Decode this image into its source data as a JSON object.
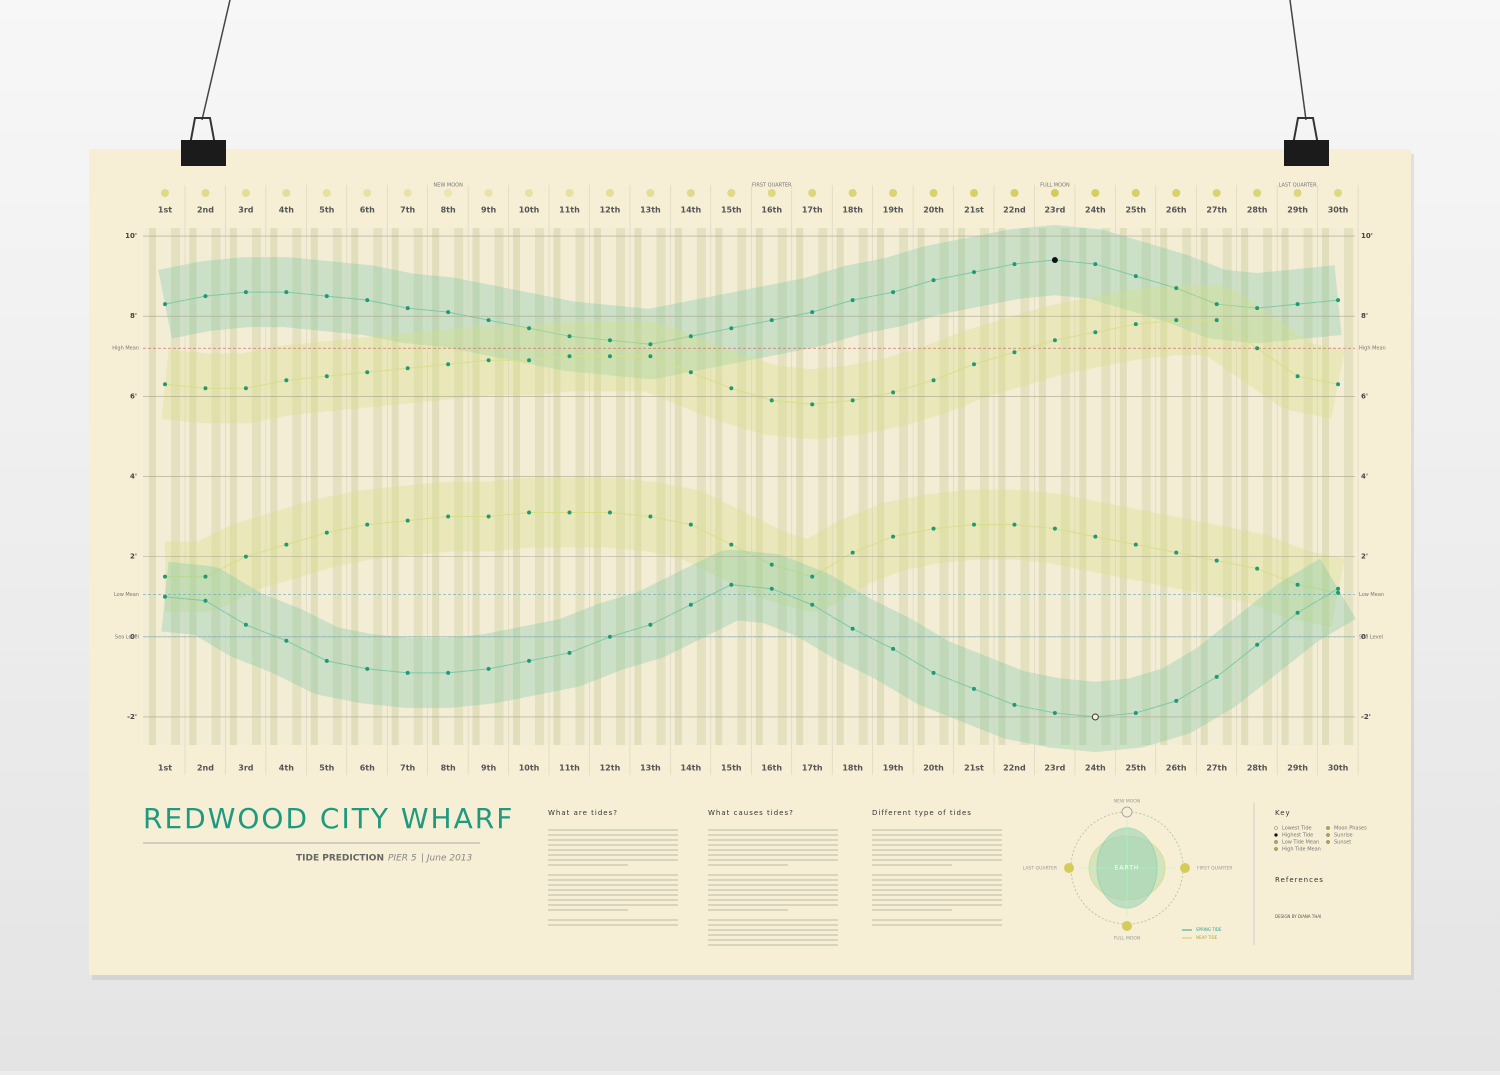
{
  "chart_data": {
    "type": "tide",
    "title": "REDWOOD CITY WHARF",
    "subtitle": "TIDE PREDICTION",
    "location": "PIER 5",
    "date": "| June 2013",
    "categories": [
      "1st",
      "2nd",
      "3rd",
      "4th",
      "5th",
      "6th",
      "7th",
      "8th",
      "9th",
      "10th",
      "11th",
      "12th",
      "13th",
      "14th",
      "15th",
      "16th",
      "17th",
      "18th",
      "19th",
      "20th",
      "21st",
      "22nd",
      "23rd",
      "24th",
      "25th",
      "26th",
      "27th",
      "28th",
      "29th",
      "30th"
    ],
    "series": [
      {
        "color": "#7ec9a8",
        "values": [
          8.3,
          8.5,
          8.6,
          8.6,
          8.5,
          8.4,
          8.2,
          8.1,
          7.9,
          7.7,
          7.5,
          7.4,
          7.3,
          7.5,
          7.7,
          7.9,
          8.1,
          8.4,
          8.6,
          8.9,
          9.1,
          9.3,
          9.4,
          9.3,
          9.0,
          8.7,
          8.3,
          8.2,
          8.3,
          8.4
        ]
      },
      {
        "color": "#d8df86",
        "values": [
          6.3,
          6.2,
          6.2,
          6.4,
          6.5,
          6.6,
          6.7,
          6.8,
          6.9,
          6.9,
          7.0,
          7.0,
          7.0,
          6.6,
          6.2,
          5.9,
          5.8,
          5.9,
          6.1,
          6.4,
          6.8,
          7.1,
          7.4,
          7.6,
          7.8,
          7.9,
          7.9,
          7.2,
          6.5,
          6.3
        ]
      },
      {
        "color": "#d8df86",
        "values": [
          1.5,
          1.5,
          2.0,
          2.3,
          2.6,
          2.8,
          2.9,
          3.0,
          3.0,
          3.1,
          3.1,
          3.1,
          3.0,
          2.8,
          2.3,
          1.8,
          1.5,
          2.1,
          2.5,
          2.7,
          2.8,
          2.8,
          2.7,
          2.5,
          2.3,
          2.1,
          1.9,
          1.7,
          1.3,
          1.1
        ]
      },
      {
        "color": "#7ec9a8",
        "values": [
          1.0,
          0.9,
          0.3,
          -0.1,
          -0.6,
          -0.8,
          -0.9,
          -0.9,
          -0.8,
          -0.6,
          -0.4,
          0.0,
          0.3,
          0.8,
          1.3,
          1.2,
          0.8,
          0.2,
          -0.3,
          -0.9,
          -1.3,
          -1.7,
          -1.9,
          -2.0,
          -1.9,
          -1.6,
          -1.0,
          -0.2,
          0.6,
          1.2
        ]
      }
    ],
    "ylim": [
      -2.7,
      10.2
    ],
    "yticks": [
      {
        "value": -2,
        "label": "-2'"
      },
      {
        "value": 0,
        "label": "0'"
      },
      {
        "value": 2,
        "label": "2'"
      },
      {
        "value": 4,
        "label": "4'"
      },
      {
        "value": 6,
        "label": "6'"
      },
      {
        "value": 8,
        "label": "8'"
      },
      {
        "value": 10,
        "label": "10'"
      }
    ],
    "grid": true,
    "mean_lines": [
      {
        "label": "High Mean",
        "value": 7.2
      },
      {
        "label": "Low Mean",
        "value": 1.05
      },
      {
        "label": "Sea Level",
        "value": 0
      }
    ],
    "moon_labels": [
      {
        "day": 8,
        "label": "NEW MOON"
      },
      {
        "day": 16,
        "label": "FIRST QUARTER"
      },
      {
        "day": 23,
        "label": "FULL MOON"
      },
      {
        "day": 29,
        "label": "LAST QUARTER"
      }
    ]
  },
  "sections": [
    "What are tides?",
    "What causes tides?",
    "Different type of tides"
  ],
  "diagram": {
    "center": "EARTH",
    "top": "NEW MOON",
    "right": "FIRST QUARTER",
    "bottom": "FULL MOON",
    "left": "LAST QUARTER",
    "legend": [
      "SPRING TIDE",
      "NEAP TIDE"
    ]
  },
  "key": {
    "title": "Key",
    "items": [
      "Lowest Tide",
      "Highest Tide",
      "Low Tide Mean",
      "High Tide Mean",
      "Moon Phases",
      "Sunrise",
      "Sunset"
    ]
  },
  "references": "References",
  "credit": "DESIGN BY DIANA THAI"
}
